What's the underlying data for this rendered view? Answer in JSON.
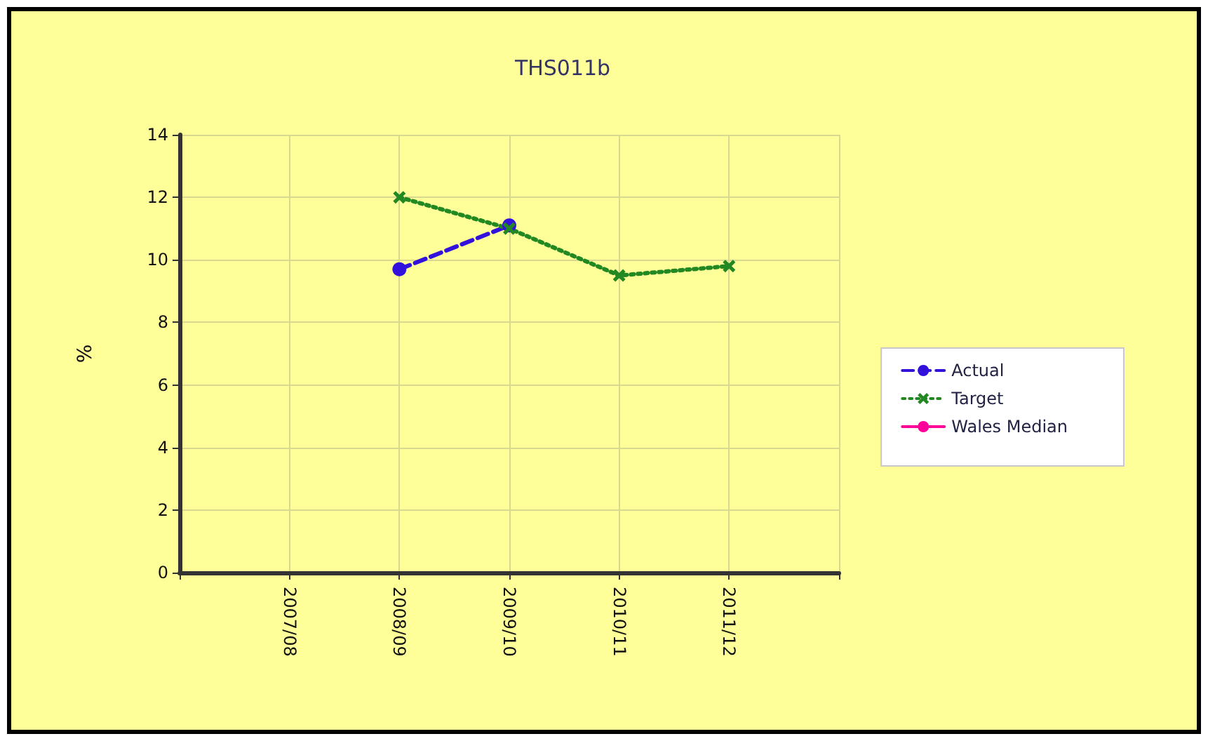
{
  "chart_data": {
    "type": "line",
    "title": "THS011b",
    "ylabel": "%",
    "categories": [
      null,
      "2007/08",
      "2008/09",
      "2009/10",
      "2010/11",
      "2011/12",
      null
    ],
    "series": [
      {
        "name": "Actual",
        "color": "#3311dd",
        "marker": "circle",
        "line_style": "dashed",
        "values": [
          null,
          null,
          9.7,
          11.1,
          null,
          null,
          null
        ]
      },
      {
        "name": "Target",
        "color": "#228822",
        "marker": "cross",
        "line_style": "dotted",
        "values": [
          null,
          null,
          12,
          11,
          9.5,
          9.8,
          null
        ]
      },
      {
        "name": "Wales Median",
        "color": "#ff0099",
        "marker": "none",
        "line_style": "solid",
        "values": [
          null,
          null,
          null,
          null,
          null,
          null,
          null
        ]
      }
    ],
    "ylim": [
      0,
      14
    ],
    "yticks": [
      0,
      2,
      4,
      6,
      8,
      10,
      12,
      14
    ],
    "grid": true,
    "legend": "right"
  }
}
